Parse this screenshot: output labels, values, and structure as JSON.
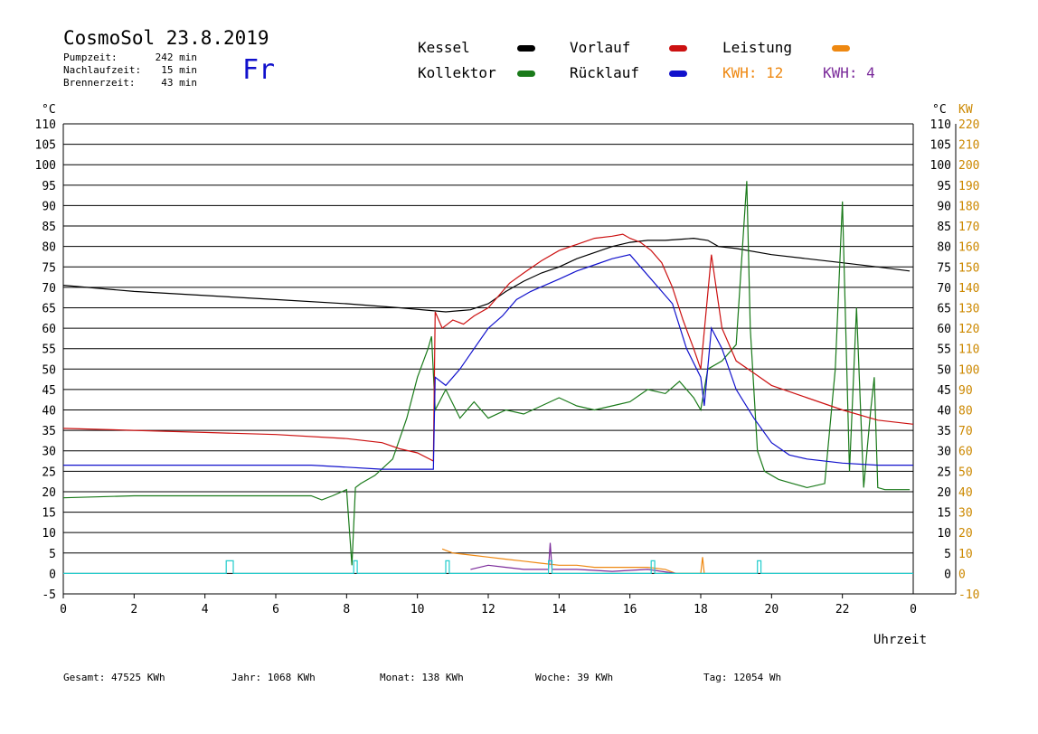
{
  "header": {
    "title": "CosmoSol 23.8.2019",
    "day": "Fr",
    "stats": [
      {
        "label": "Pumpzeit:",
        "value": "242 min"
      },
      {
        "label": "Nachlaufzeit:",
        "value": "15 min"
      },
      {
        "label": "Brennerzeit:",
        "value": "43 min"
      }
    ]
  },
  "legend": {
    "kessel": "Kessel",
    "kollektor": "Kollektor",
    "vorlauf": "Vorlauf",
    "ruecklauf": "Rücklauf",
    "leistung": "Leistung",
    "kwh_orange": "KWH: 12",
    "kwh_purple": "KWH: 4"
  },
  "axes": {
    "left_unit": "°C",
    "right_unit_c": "°C",
    "right_unit_kw": "KW",
    "x_label": "Uhrzeit",
    "x_last_tick": "0"
  },
  "colors": {
    "kessel": "#000000",
    "kollektor": "#1a7a1a",
    "vorlauf": "#cc1111",
    "ruecklauf": "#1111cc",
    "leistung": "#ee8811",
    "kwh_purple": "#7a2a9a",
    "pump": "#22cccc"
  },
  "footer": [
    {
      "label": "Gesamt:",
      "value": "47525 KWh"
    },
    {
      "label": "Jahr:",
      "value": "1068 KWh"
    },
    {
      "label": "Monat:",
      "value": "138 KWh"
    },
    {
      "label": "Woche:",
      "value": "39 KWh"
    },
    {
      "label": "Tag:",
      "value": "12054 Wh"
    }
  ],
  "chart_data": {
    "type": "line",
    "xlabel": "Uhrzeit",
    "ylabel": "°C",
    "y2label": "KW",
    "xlim": [
      0,
      24
    ],
    "ylim": [
      -5,
      110
    ],
    "y2lim": [
      -10,
      220
    ],
    "x_ticks": [
      0,
      2,
      4,
      6,
      8,
      10,
      12,
      14,
      16,
      18,
      20,
      22
    ],
    "y_ticks": [
      -5,
      0,
      5,
      10,
      15,
      20,
      25,
      30,
      35,
      40,
      45,
      50,
      55,
      60,
      65,
      70,
      75,
      80,
      85,
      90,
      95,
      100,
      105,
      110
    ],
    "y2_ticks": [
      -10,
      0,
      10,
      20,
      30,
      40,
      50,
      60,
      70,
      80,
      90,
      100,
      110,
      120,
      130,
      140,
      150,
      160,
      170,
      180,
      190,
      200,
      210,
      220
    ],
    "grid": true,
    "series": [
      {
        "name": "Kessel",
        "color": "#000000",
        "x": [
          0,
          2,
          4,
          6,
          8,
          9.5,
          10.8,
          11.5,
          12,
          12.5,
          13,
          13.5,
          14,
          14.5,
          15,
          15.5,
          16,
          16.5,
          17,
          17.5,
          17.8,
          18.2,
          18.5,
          19,
          20,
          21,
          22,
          23,
          23.9
        ],
        "y": [
          70.5,
          69,
          68,
          67,
          66,
          65,
          64,
          64.5,
          66,
          69,
          71.5,
          73.5,
          75,
          77,
          78.5,
          80,
          81,
          81.5,
          81.5,
          81.8,
          82,
          81.5,
          80,
          79.5,
          78,
          77,
          76,
          75,
          74
        ]
      },
      {
        "name": "Kollektor",
        "color": "#1a7a1a",
        "x": [
          0,
          2,
          4,
          6,
          7,
          7.3,
          7.6,
          8,
          8.15,
          8.25,
          8.4,
          8.8,
          9.3,
          9.7,
          10,
          10.3,
          10.4,
          10.5,
          10.8,
          11.2,
          11.6,
          12,
          12.5,
          13,
          13.5,
          14,
          14.5,
          15,
          15.5,
          16,
          16.5,
          17,
          17.4,
          17.8,
          18,
          18.2,
          18.6,
          19,
          19.3,
          19.4,
          19.6,
          19.8,
          20.2,
          20.6,
          21,
          21.5,
          21.8,
          22,
          22.2,
          22.4,
          22.6,
          22.8,
          22.9,
          23,
          23.2,
          23.4,
          23.6,
          23.9
        ],
        "y": [
          18.5,
          19,
          19,
          19,
          19,
          18,
          19,
          20.5,
          2,
          21,
          22,
          24,
          28,
          38,
          48,
          55,
          58,
          40,
          45,
          38,
          42,
          38,
          40,
          39,
          41,
          43,
          41,
          40,
          41,
          42,
          45,
          44,
          47,
          43,
          40,
          50,
          52,
          56,
          96,
          60,
          30,
          25,
          23,
          22,
          21,
          22,
          50,
          91,
          25,
          65,
          21,
          40,
          48,
          21,
          20.5,
          20.5,
          20.5,
          20.5
        ]
      },
      {
        "name": "Vorlauf",
        "color": "#cc1111",
        "x": [
          0,
          2,
          4,
          6,
          8,
          9,
          9.5,
          10,
          10.45,
          10.5,
          10.7,
          11,
          11.3,
          11.6,
          12,
          12.3,
          12.6,
          13,
          13.5,
          14,
          14.5,
          15,
          15.5,
          15.8,
          16,
          16.3,
          16.6,
          16.9,
          17.2,
          17.5,
          17.8,
          18,
          18.3,
          18.6,
          19,
          19.5,
          20,
          21,
          22,
          23,
          24
        ],
        "y": [
          35.5,
          35,
          34.5,
          34,
          33,
          32,
          30.5,
          29.5,
          27.5,
          64,
          60,
          62,
          61,
          63,
          65,
          68,
          71,
          73.5,
          76.5,
          79,
          80.5,
          82,
          82.5,
          83,
          82,
          81,
          79,
          76,
          70,
          62,
          55,
          50,
          78,
          60,
          52,
          49,
          46,
          43,
          40,
          37.5,
          36.5
        ]
      },
      {
        "name": "Rücklauf",
        "color": "#1111cc",
        "x": [
          0,
          2,
          4,
          6,
          7,
          8,
          9,
          10,
          10.45,
          10.5,
          10.8,
          11.2,
          11.6,
          12,
          12.4,
          12.8,
          13.2,
          13.6,
          14,
          14.5,
          15,
          15.5,
          16,
          16.4,
          16.8,
          17.2,
          17.6,
          18,
          18.1,
          18.3,
          18.6,
          19,
          19.5,
          20,
          20.5,
          21,
          22,
          23,
          24
        ],
        "y": [
          26.5,
          26.5,
          26.5,
          26.5,
          26.5,
          26,
          25.5,
          25.5,
          25.5,
          48,
          46,
          50,
          55,
          60,
          63,
          67,
          69,
          70.5,
          72,
          74,
          75.5,
          77,
          78,
          74,
          70,
          66,
          55,
          48,
          41,
          60,
          55,
          45,
          38,
          32,
          29,
          28,
          27,
          26.5,
          26.5
        ]
      },
      {
        "name": "Leistung",
        "color": "#ee8811",
        "x": [
          10.7,
          11,
          11.5,
          12,
          12.5,
          13,
          13.5,
          14,
          14.5,
          15,
          15.5,
          16,
          16.5,
          17,
          17.3,
          18,
          18.05,
          18.1
        ],
        "y": [
          12,
          10,
          9,
          8,
          7,
          6,
          5,
          4,
          4,
          3,
          3,
          3,
          3,
          2,
          0,
          0,
          8,
          0
        ]
      },
      {
        "name": "KWH",
        "color": "#7a2a9a",
        "x": [
          11.5,
          12,
          12.5,
          13,
          13.7,
          13.75,
          13.8,
          14.5,
          15.5,
          16.5,
          17.3
        ],
        "y": [
          2,
          4,
          3,
          2,
          2,
          15,
          2,
          2,
          1,
          2,
          0
        ]
      },
      {
        "name": "Pumpe",
        "color": "#22cccc",
        "x": [
          0,
          4.6,
          4.8,
          8.2,
          8.3,
          10.8,
          10.9,
          13.7,
          13.8,
          16.6,
          16.7,
          19.6,
          19.7,
          24
        ],
        "y": [
          0,
          1,
          0,
          1,
          0,
          1,
          0,
          1,
          0,
          1,
          0,
          1,
          0,
          0
        ]
      }
    ]
  }
}
